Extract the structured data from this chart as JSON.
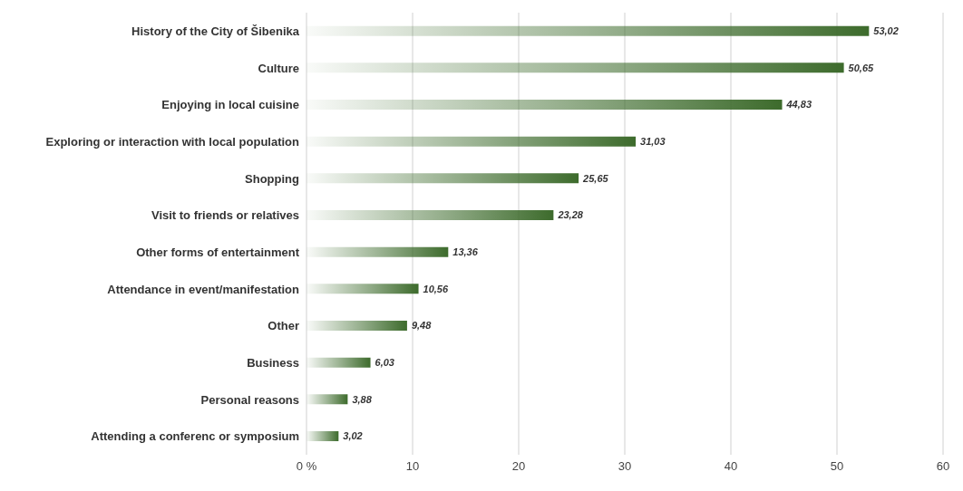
{
  "chart_data": {
    "type": "bar",
    "orientation": "horizontal",
    "categories": [
      "History of the City of Šibenika",
      "Culture",
      "Enjoying in local cuisine",
      "Exploring or interaction with local population",
      "Shopping",
      "Visit to friends or relatives",
      "Other forms of entertainment",
      "Attendance in event/manifestation",
      "Other",
      "Business",
      "Personal reasons",
      "Attending a conferenc or symposium"
    ],
    "values": [
      53.02,
      50.65,
      44.83,
      31.03,
      25.65,
      23.28,
      13.36,
      10.56,
      9.48,
      6.03,
      3.88,
      3.02
    ],
    "value_labels": [
      "53,02",
      "50,65",
      "44,83",
      "31,03",
      "25,65",
      "23,28",
      "13,36",
      "10,56",
      "9,48",
      "6,03",
      "3,88",
      "3,02"
    ],
    "color": "#3d6b2c",
    "xlim": [
      0,
      60
    ],
    "xticks": [
      {
        "value": 0,
        "label": "0 %"
      },
      10,
      20,
      30,
      40,
      50,
      60
    ],
    "grid": "x"
  }
}
